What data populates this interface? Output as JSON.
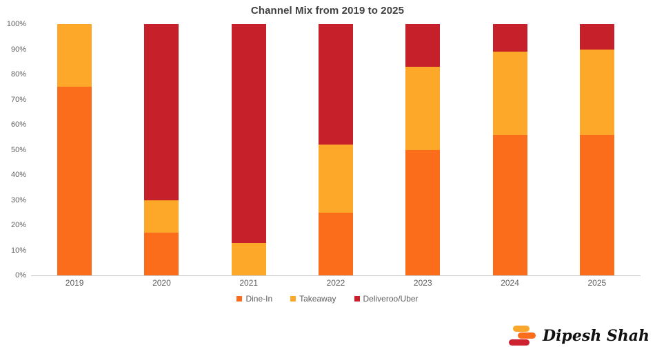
{
  "chart_data": {
    "type": "bar",
    "stacked": true,
    "percent": true,
    "title": "Channel Mix from 2019 to 2025",
    "categories": [
      "2019",
      "2020",
      "2021",
      "2022",
      "2023",
      "2024",
      "2025"
    ],
    "series": [
      {
        "name": "Dine-In",
        "color": "#FB6D1B",
        "values": [
          75,
          17,
          0,
          25,
          50,
          56,
          56
        ]
      },
      {
        "name": "Takeaway",
        "color": "#FDA828",
        "values": [
          25,
          13,
          13,
          27,
          33,
          33,
          34
        ]
      },
      {
        "name": "Deliveroo/Uber",
        "color": "#C6212B",
        "values": [
          0,
          70,
          87,
          48,
          17,
          11,
          10
        ]
      }
    ],
    "xlabel": "",
    "ylabel": "",
    "ylim": [
      0,
      100
    ],
    "y_ticks": [
      0,
      10,
      20,
      30,
      40,
      50,
      60,
      70,
      80,
      90,
      100
    ],
    "y_tick_labels": [
      "0%",
      "10%",
      "20%",
      "30%",
      "40%",
      "50%",
      "60%",
      "70%",
      "80%",
      "90%",
      "100%"
    ],
    "grid": false,
    "legend_position": "bottom"
  },
  "branding": {
    "name": "Dipesh Shah",
    "icon": "stacked-bars-logo",
    "icon_colors": [
      "#FBA62C",
      "#FA6E1B",
      "#CF2231"
    ],
    "text_color": "#111111"
  },
  "colors": {
    "title": "#404040",
    "axis_label": "#5f5f5f",
    "axis_line": "#cccccc",
    "background": "#ffffff"
  }
}
